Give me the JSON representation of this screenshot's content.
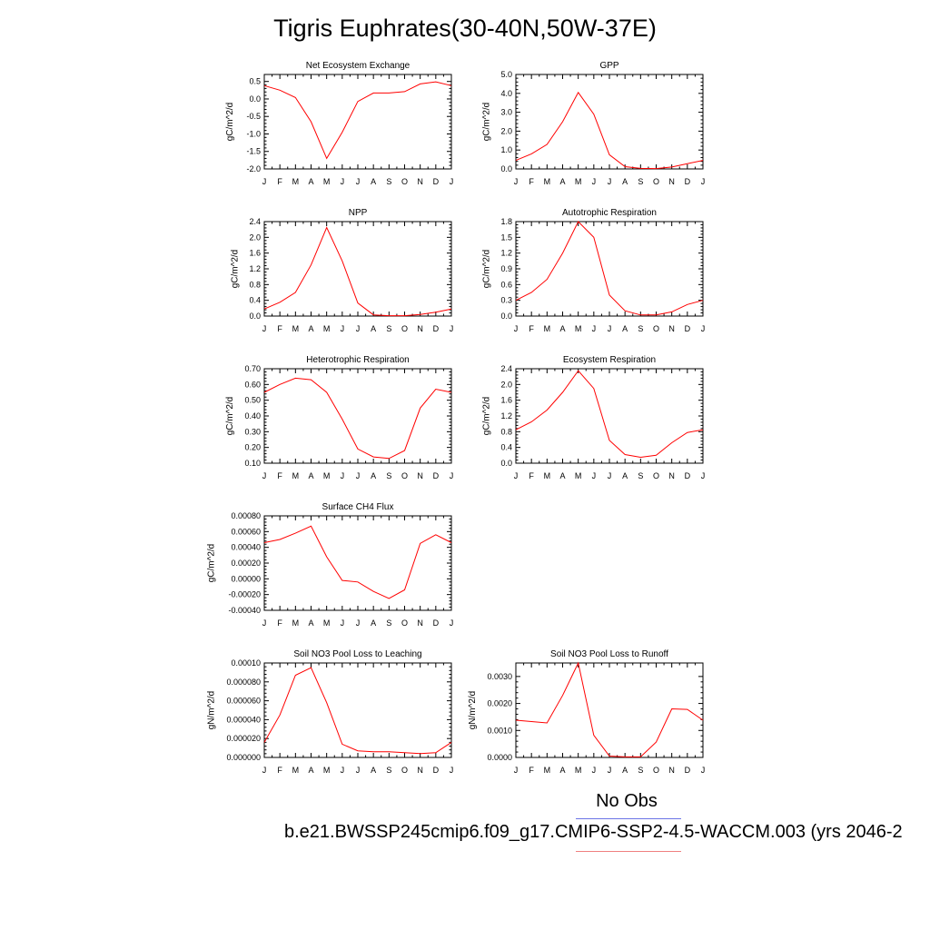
{
  "title": "Tigris Euphrates(30-40N,50W-37E)",
  "legend": {
    "obs_label": "No Obs",
    "case_label": "b.e21.BWSSP245cmip6.f09_g17.CMIP6-SSP2-4.5-WACCM.003 (yrs 2046-2",
    "obs_color": "#6b74e6",
    "case_color": "#ef8080"
  },
  "months": [
    "J",
    "F",
    "M",
    "A",
    "M",
    "J",
    "J",
    "A",
    "S",
    "O",
    "N",
    "D",
    "J"
  ],
  "chart_data": [
    {
      "type": "line",
      "title": "Net Ecosystem Exchange",
      "ylabel": "gC/m^2/d",
      "ylim": [
        -2.0,
        0.7
      ],
      "yticks": [
        -2.0,
        -1.5,
        -1.0,
        -0.5,
        0.0,
        0.5
      ],
      "ytick_labels": [
        "-2.0",
        "-1.5",
        "-1.0",
        "-0.5",
        "0.0",
        "0.5"
      ],
      "values": [
        0.38,
        0.25,
        0.04,
        -0.65,
        -1.7,
        -0.95,
        -0.07,
        0.17,
        0.17,
        0.21,
        0.43,
        0.49,
        0.38
      ],
      "color": "#ff0000"
    },
    {
      "type": "line",
      "title": "GPP",
      "ylabel": "gC/m^2/d",
      "ylim": [
        0.0,
        5.0
      ],
      "yticks": [
        0.0,
        1.0,
        2.0,
        3.0,
        4.0,
        5.0
      ],
      "ytick_labels": [
        "0.0",
        "1.0",
        "2.0",
        "3.0",
        "4.0",
        "5.0"
      ],
      "values": [
        0.45,
        0.8,
        1.3,
        2.5,
        4.05,
        2.9,
        0.75,
        0.12,
        0.03,
        0.02,
        0.1,
        0.28,
        0.45
      ],
      "color": "#ff0000"
    },
    {
      "type": "line",
      "title": "NPP",
      "ylabel": "gC/m^2/d",
      "ylim": [
        0.0,
        2.4
      ],
      "yticks": [
        0.0,
        0.4,
        0.8,
        1.2,
        1.6,
        2.0,
        2.4
      ],
      "ytick_labels": [
        "0.0",
        "0.4",
        "0.8",
        "1.2",
        "1.6",
        "2.0",
        "2.4"
      ],
      "values": [
        0.18,
        0.35,
        0.6,
        1.3,
        2.25,
        1.4,
        0.33,
        0.03,
        0.01,
        0.01,
        0.04,
        0.1,
        0.18
      ],
      "color": "#ff0000"
    },
    {
      "type": "line",
      "title": "Autotrophic Respiration",
      "ylabel": "gC/m^2/d",
      "ylim": [
        0.0,
        1.8
      ],
      "yticks": [
        0.0,
        0.3,
        0.6,
        0.9,
        1.2,
        1.5,
        1.8
      ],
      "ytick_labels": [
        "0.0",
        "0.3",
        "0.6",
        "0.9",
        "1.2",
        "1.5",
        "1.8"
      ],
      "values": [
        0.3,
        0.45,
        0.7,
        1.2,
        1.8,
        1.5,
        0.4,
        0.1,
        0.02,
        0.02,
        0.08,
        0.22,
        0.3
      ],
      "color": "#ff0000"
    },
    {
      "type": "line",
      "title": "Heterotrophic Respiration",
      "ylabel": "gC/m^2/d",
      "ylim": [
        0.1,
        0.7
      ],
      "yticks": [
        0.1,
        0.2,
        0.3,
        0.4,
        0.5,
        0.6,
        0.7
      ],
      "ytick_labels": [
        "0.10",
        "0.20",
        "0.30",
        "0.40",
        "0.50",
        "0.60",
        "0.70"
      ],
      "values": [
        0.55,
        0.6,
        0.64,
        0.63,
        0.55,
        0.38,
        0.19,
        0.14,
        0.13,
        0.18,
        0.45,
        0.57,
        0.55
      ],
      "color": "#ff0000"
    },
    {
      "type": "line",
      "title": "Ecosystem Respiration",
      "ylabel": "gC/m^2/d",
      "ylim": [
        0.0,
        2.4
      ],
      "yticks": [
        0.0,
        0.4,
        0.8,
        1.2,
        1.6,
        2.0,
        2.4
      ],
      "ytick_labels": [
        "0.0",
        "0.4",
        "0.8",
        "1.2",
        "1.6",
        "2.0",
        "2.4"
      ],
      "values": [
        0.85,
        1.05,
        1.35,
        1.8,
        2.35,
        1.9,
        0.58,
        0.22,
        0.15,
        0.2,
        0.52,
        0.78,
        0.85
      ],
      "color": "#ff0000"
    },
    {
      "type": "line",
      "title": "Surface CH4 Flux",
      "ylabel": "gC/m^2/d",
      "ylim": [
        -0.0004,
        0.0008
      ],
      "yticks": [
        -0.0004,
        -0.0002,
        0.0,
        0.0002,
        0.0004,
        0.0006,
        0.0008
      ],
      "ytick_labels": [
        "-0.00040",
        "-0.00020",
        "0.00000",
        "0.00020",
        "0.00040",
        "0.00060",
        "0.00080"
      ],
      "values": [
        0.00046,
        0.0005,
        0.00058,
        0.00067,
        0.00028,
        -2e-05,
        -4e-05,
        -0.00016,
        -0.00025,
        -0.00014,
        0.00045,
        0.00056,
        0.00046
      ],
      "color": "#ff0000"
    },
    {
      "type": "line",
      "title": "Soil NO3 Pool Loss to Leaching",
      "ylabel": "gN/m^2/d",
      "ylim": [
        0.0,
        0.0001
      ],
      "yticks": [
        0.0,
        2e-05,
        4e-05,
        6e-05,
        8e-05,
        0.0001
      ],
      "ytick_labels": [
        "0.000000",
        "0.000020",
        "0.000040",
        "0.000060",
        "0.000080",
        "0.00010"
      ],
      "values": [
        1.6e-05,
        4.5e-05,
        8.7e-05,
        9.5e-05,
        5.8e-05,
        1.4e-05,
        7e-06,
        6e-06,
        6e-06,
        5e-06,
        4e-06,
        5e-06,
        1.6e-05
      ],
      "color": "#ff0000"
    },
    {
      "type": "line",
      "title": "Soil NO3 Pool Loss to Runoff",
      "ylabel": "gN/m^2/d",
      "ylim": [
        0.0,
        0.0035
      ],
      "yticks": [
        0.0,
        0.001,
        0.002,
        0.003
      ],
      "ytick_labels": [
        "0.0000",
        "0.0010",
        "0.0020",
        "0.0030"
      ],
      "values": [
        0.00138,
        0.00133,
        0.00128,
        0.0023,
        0.0035,
        0.00082,
        5e-05,
        2e-05,
        2e-05,
        0.00057,
        0.0018,
        0.00178,
        0.00138
      ],
      "color": "#ff0000"
    }
  ]
}
